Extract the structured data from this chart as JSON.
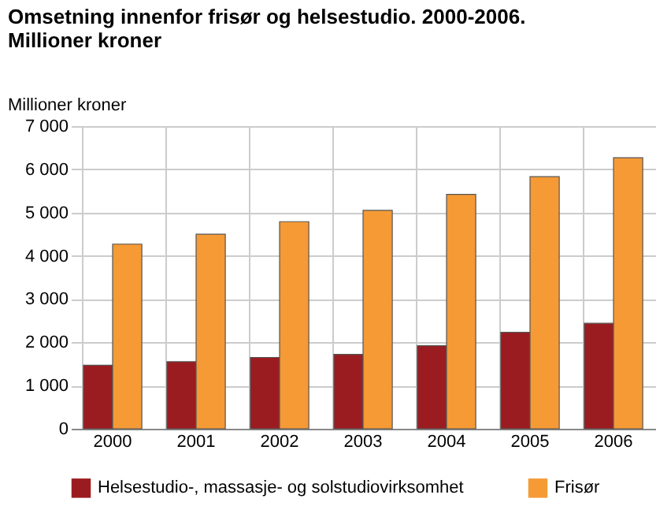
{
  "chart_data": {
    "type": "bar",
    "title": [
      "Omsetning innenfor frisør og helsestudio. 2000-2006.",
      "Millioner kroner"
    ],
    "ylabel": "Millioner kroner",
    "categories": [
      "2000",
      "2001",
      "2002",
      "2003",
      "2004",
      "2005",
      "2006"
    ],
    "series": [
      {
        "name": "Helsestudio-, massasje- og solstudiovirksomhet",
        "color": "#9b1c20",
        "values": [
          1470,
          1550,
          1650,
          1720,
          1920,
          2230,
          2440
        ]
      },
      {
        "name": "Frisør",
        "color": "#f59a35",
        "values": [
          4270,
          4500,
          4790,
          5050,
          5420,
          5830,
          6270
        ]
      }
    ],
    "ylim": [
      0,
      7000
    ],
    "yticks": [
      0,
      {
        "value": 1000,
        "label": "1 000"
      },
      {
        "value": 2000,
        "label": "2 000"
      },
      {
        "value": 3000,
        "label": "3 000"
      },
      {
        "value": 4000,
        "label": "4 000"
      },
      {
        "value": 5000,
        "label": "5 000"
      },
      {
        "value": 6000,
        "label": "6 000"
      },
      {
        "value": 7000,
        "label": "7 000"
      }
    ],
    "grid": true,
    "legend": "bottom"
  }
}
